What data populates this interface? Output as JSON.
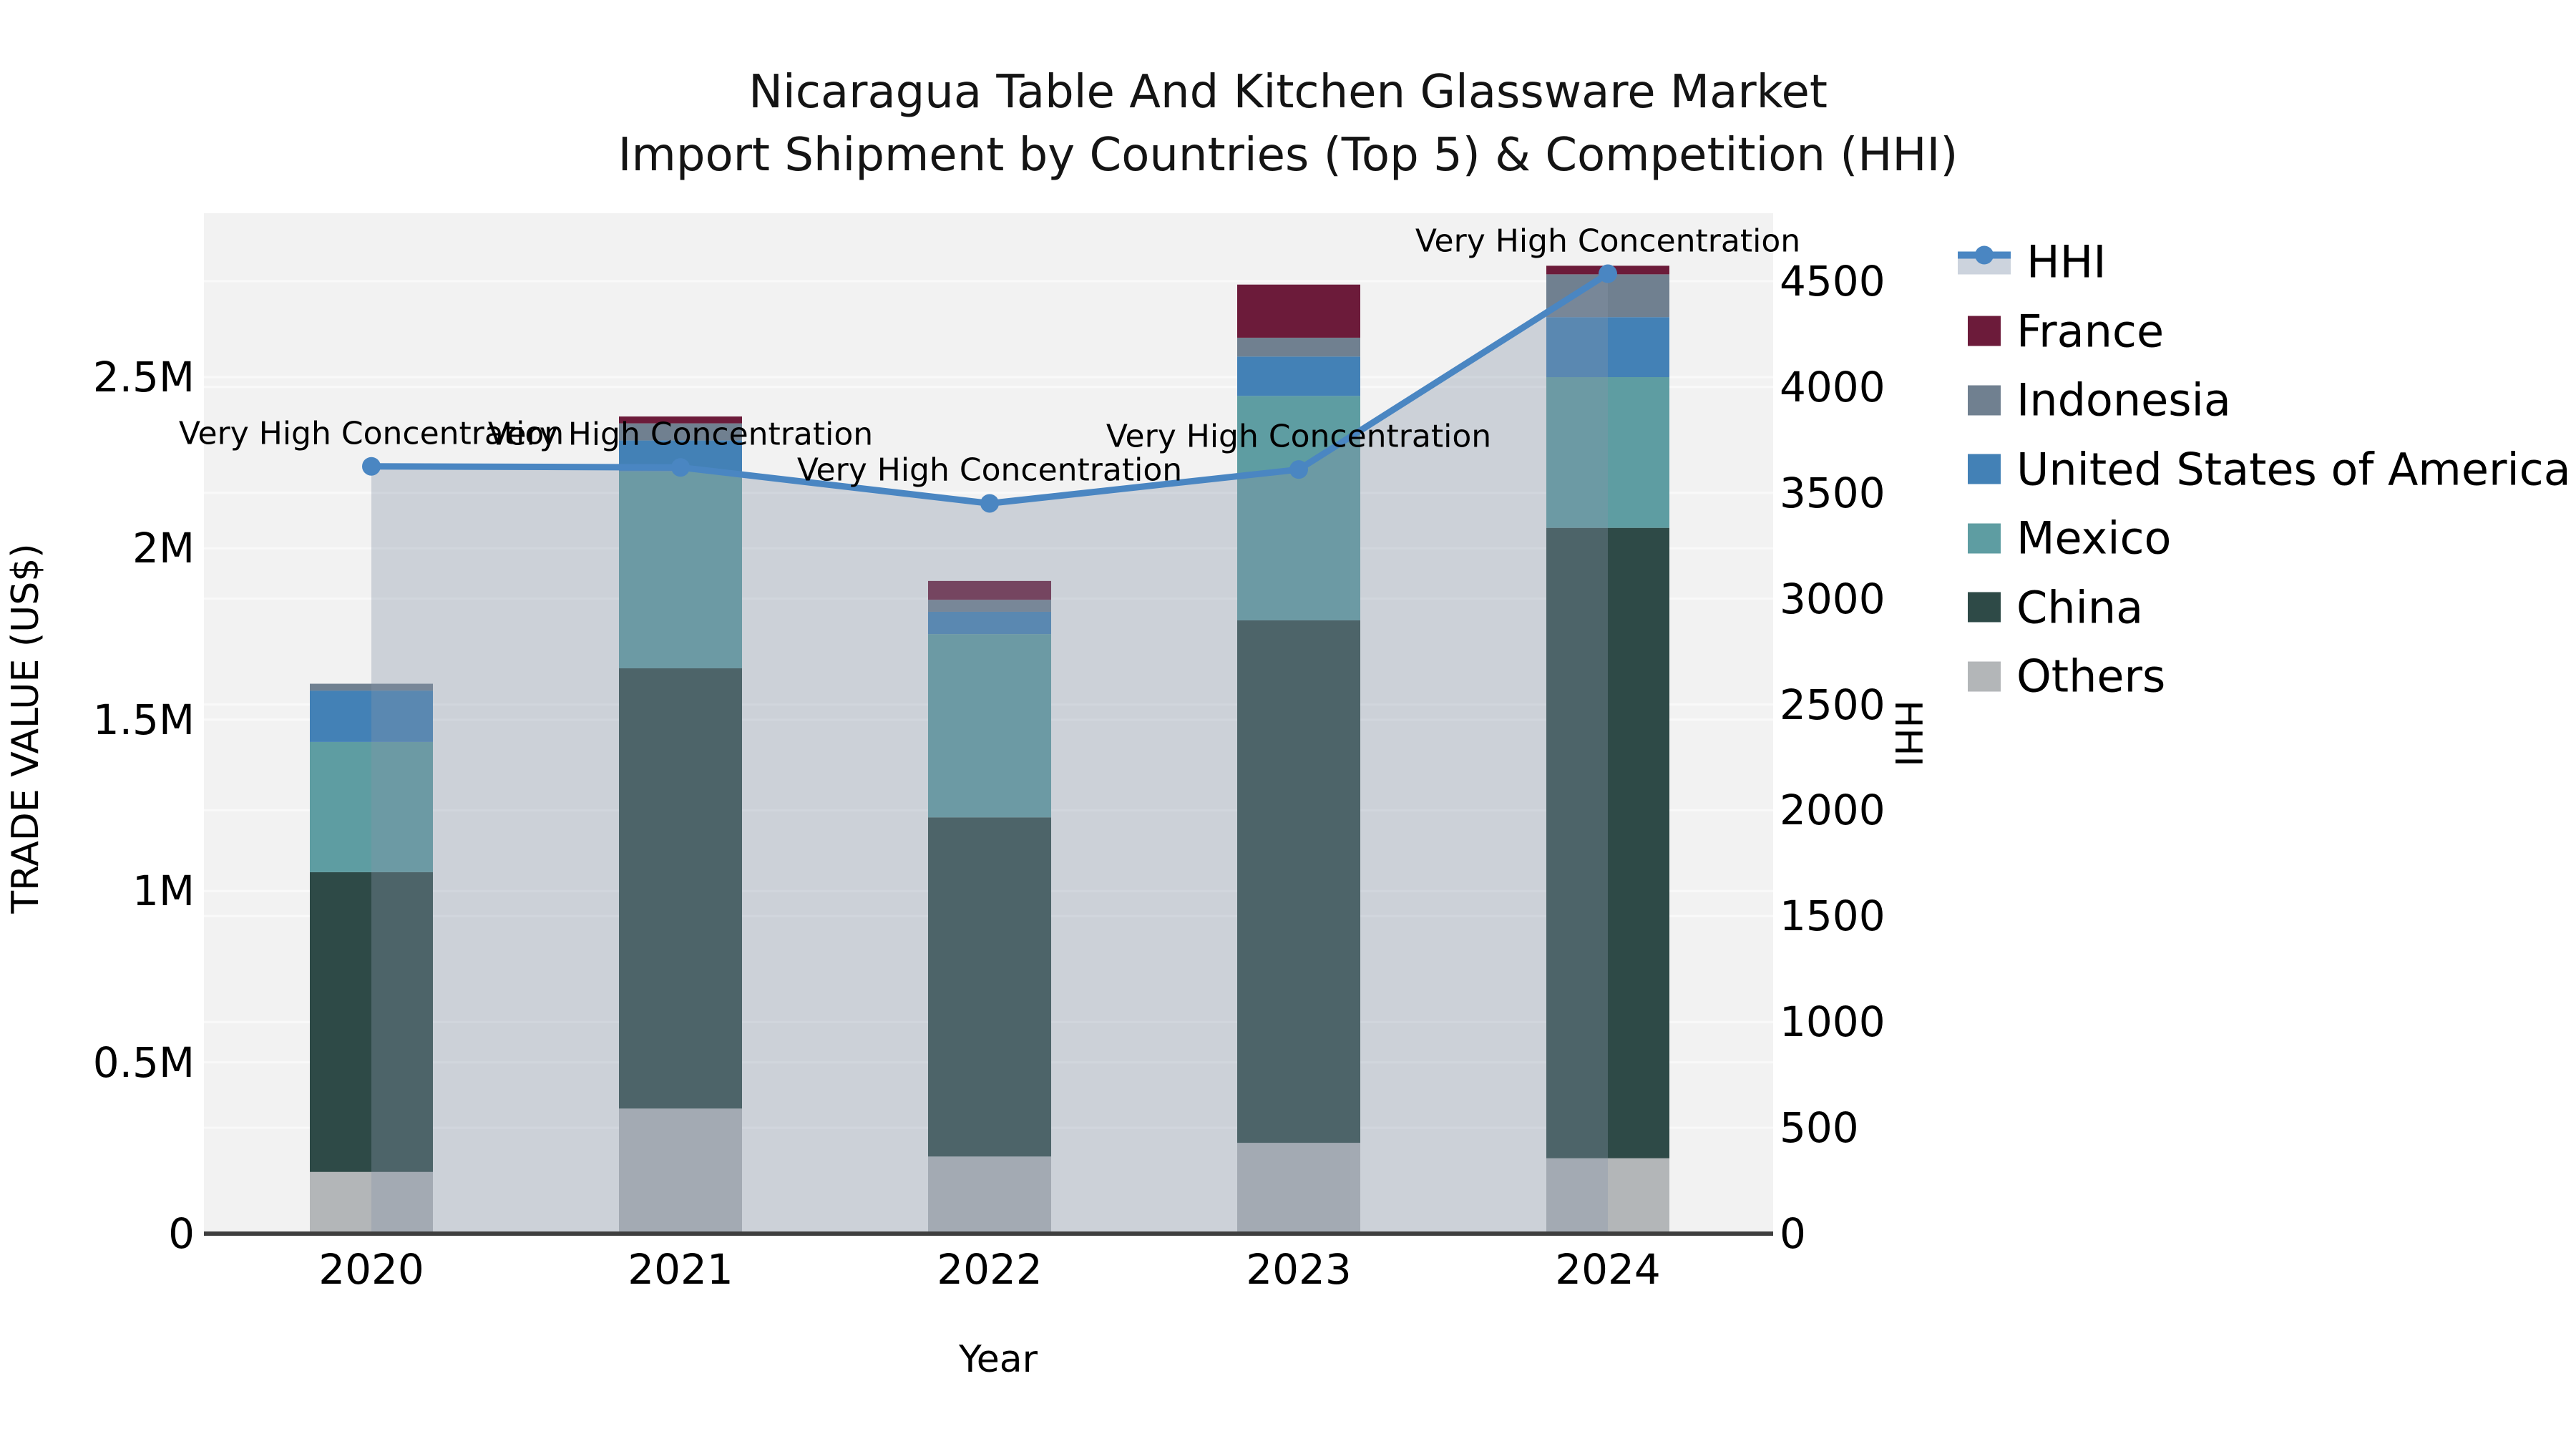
{
  "title": {
    "line1": "Nicaragua Table And Kitchen Glassware Market",
    "line2": "Import Shipment by Countries (Top 5) & Competition (HHI)"
  },
  "axes": {
    "x": {
      "label": "Year",
      "tick_labels": [
        "2020",
        "2021",
        "2022",
        "2023",
        "2024"
      ]
    },
    "y_left": {
      "label": "TRADE VALUE (US$)",
      "tick_labels": [
        "0",
        "0.5M",
        "1M",
        "1.5M",
        "2M",
        "2.5M"
      ],
      "tick_values": [
        0,
        500000,
        1000000,
        1500000,
        2000000,
        2500000
      ]
    },
    "y_right": {
      "label": "HHI",
      "tick_labels": [
        "0",
        "500",
        "1000",
        "1500",
        "2000",
        "2500",
        "3000",
        "3500",
        "4000",
        "4500"
      ],
      "tick_values": [
        0,
        500,
        1000,
        1500,
        2000,
        2500,
        3000,
        3500,
        4000,
        4500
      ]
    }
  },
  "legend": {
    "items": [
      {
        "label": "HHI",
        "type": "line",
        "color": "#4a86c2"
      },
      {
        "label": "France",
        "type": "patch",
        "color": "#6c1b3a"
      },
      {
        "label": "Indonesia",
        "type": "patch",
        "color": "#708090"
      },
      {
        "label": "United States of America",
        "type": "patch",
        "color": "#4381b6"
      },
      {
        "label": "Mexico",
        "type": "patch",
        "color": "#5e9da2"
      },
      {
        "label": "China",
        "type": "patch",
        "color": "#2e4a47"
      },
      {
        "label": "Others",
        "type": "patch",
        "color": "#b3b6b8"
      }
    ]
  },
  "annotations": {
    "text": "Very High Concentration",
    "per_point": [
      "Very High Concentration",
      "Very High Concentration",
      "Very High Concentration",
      "Very High Concentration",
      "Very High Concentration"
    ]
  },
  "chart_data": {
    "type": "bar",
    "subtype": "stacked-bar-with-line",
    "title": "Nicaragua Table And Kitchen Glassware Market Import Shipment by Countries (Top 5) & Competition (HHI)",
    "xlabel": "Year",
    "ylabel_left": "TRADE VALUE (US$)",
    "ylabel_right": "HHI",
    "categories": [
      "2020",
      "2021",
      "2022",
      "2023",
      "2024"
    ],
    "ylim_left": [
      0,
      2900000
    ],
    "ylim_right": [
      0,
      4700
    ],
    "grid": true,
    "legend_position": "upper-right-outside",
    "stack_order_bottom_to_top": [
      "Others",
      "China",
      "Mexico",
      "United States of America",
      "Indonesia",
      "France"
    ],
    "series": [
      {
        "name": "Others",
        "type": "bar",
        "axis": "left",
        "color": "#b3b6b8",
        "values": [
          180000,
          365000,
          225000,
          265000,
          220000
        ]
      },
      {
        "name": "China",
        "type": "bar",
        "axis": "left",
        "color": "#2e4a47",
        "values": [
          875000,
          1285000,
          990000,
          1525000,
          1840000
        ]
      },
      {
        "name": "Mexico",
        "type": "bar",
        "axis": "left",
        "color": "#5e9da2",
        "values": [
          380000,
          575000,
          535000,
          655000,
          440000
        ]
      },
      {
        "name": "United States of America",
        "type": "bar",
        "axis": "left",
        "color": "#4381b6",
        "values": [
          150000,
          90000,
          65000,
          115000,
          175000
        ]
      },
      {
        "name": "Indonesia",
        "type": "bar",
        "axis": "left",
        "color": "#708090",
        "values": [
          20000,
          50000,
          35000,
          55000,
          125000
        ]
      },
      {
        "name": "France",
        "type": "bar",
        "axis": "left",
        "color": "#6c1b3a",
        "values": [
          0,
          20000,
          55000,
          155000,
          25000
        ]
      },
      {
        "name": "HHI",
        "type": "line",
        "axis": "right",
        "color": "#4a86c2",
        "area_fill": "#8695aa",
        "area_opacity": 0.35,
        "values": [
          3625,
          3620,
          3450,
          3610,
          4535
        ]
      }
    ],
    "bar_totals": [
      1605000,
      2385000,
      1905000,
      2770000,
      2825000
    ],
    "colors": {
      "plot_background": "#f2f2f2",
      "gridline": "#ffffff",
      "axis_line": "#3e3e3e",
      "hhi_line": "#4a86c2",
      "hhi_area": "#8695aa"
    }
  }
}
